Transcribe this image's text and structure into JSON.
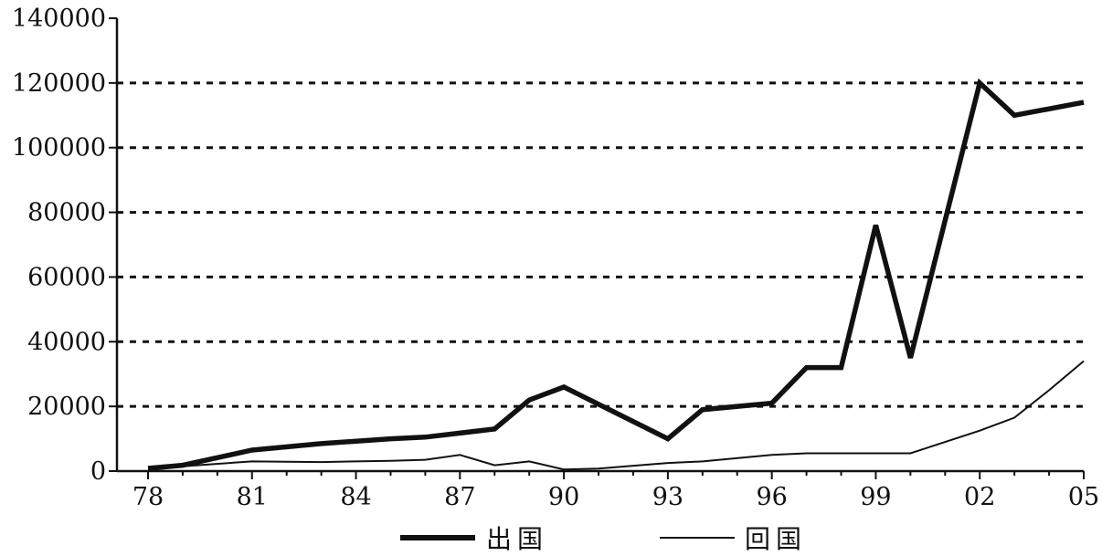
{
  "chart_data": {
    "type": "line",
    "title": "",
    "xlabel": "",
    "ylabel": "",
    "x_tick_labels": [
      "78",
      "81",
      "84",
      "87",
      "90",
      "93",
      "96",
      "99",
      "02",
      "05"
    ],
    "y_tick_labels": [
      "0",
      "20000",
      "40000",
      "60000",
      "80000",
      "100000",
      "120000",
      "140000"
    ],
    "ylim": [
      0,
      140000
    ],
    "grid": "horizontal dotted at 20000-120000",
    "legend_placement": "bottom-center",
    "series": [
      {
        "name": "出国",
        "line": "thick",
        "points": [
          [
            1978,
            860
          ],
          [
            1979,
            1800
          ],
          [
            1981,
            6500
          ],
          [
            1983,
            8500
          ],
          [
            1985,
            10000
          ],
          [
            1986,
            10500
          ],
          [
            1988,
            13000
          ],
          [
            1989,
            22000
          ],
          [
            1990,
            26000
          ],
          [
            1993,
            10000
          ],
          [
            1994,
            19000
          ],
          [
            1996,
            21000
          ],
          [
            1997,
            32000
          ],
          [
            1998,
            32000
          ],
          [
            1999,
            76000
          ],
          [
            2000,
            35000
          ],
          [
            2002,
            120000
          ],
          [
            2003,
            110000
          ],
          [
            2005,
            114000
          ]
        ]
      },
      {
        "name": "回国",
        "line": "thin",
        "points": [
          [
            1978,
            250
          ],
          [
            1979,
            1500
          ],
          [
            1981,
            3000
          ],
          [
            1983,
            2800
          ],
          [
            1985,
            3200
          ],
          [
            1986,
            3500
          ],
          [
            1987,
            5000
          ],
          [
            1988,
            1800
          ],
          [
            1989,
            3000
          ],
          [
            1990,
            500
          ],
          [
            1991,
            800
          ],
          [
            1993,
            2500
          ],
          [
            1994,
            3000
          ],
          [
            1996,
            5000
          ],
          [
            1997,
            5500
          ],
          [
            1998,
            5500
          ],
          [
            1999,
            5500
          ],
          [
            2000,
            5500
          ],
          [
            2002,
            12500
          ],
          [
            2003,
            16500
          ],
          [
            2004,
            25000
          ],
          [
            2005,
            34000
          ]
        ]
      }
    ]
  },
  "colors": {
    "line": "#111111",
    "axis": "#111111",
    "grid": "#111111",
    "background": "#ffffff"
  }
}
